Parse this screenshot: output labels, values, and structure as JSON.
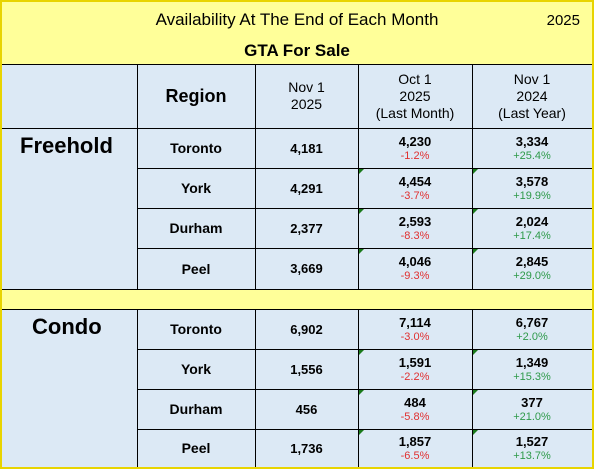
{
  "header": {
    "title": "Availability At The End of Each Month",
    "year": "2025",
    "subtitle": "GTA For Sale"
  },
  "columns": {
    "region": "Region",
    "current": [
      "Nov 1",
      "2025"
    ],
    "last_month": [
      "Oct 1",
      "2025",
      "(Last Month)"
    ],
    "last_year": [
      "Nov 1",
      "2024",
      "(Last Year)"
    ]
  },
  "sections": [
    {
      "name": "Freehold",
      "rows": [
        {
          "region": "Toronto",
          "current": "4,181",
          "last_month": "4,230",
          "last_month_change": "-1.2%",
          "last_year": "3,334",
          "last_year_change": "+25.4%"
        },
        {
          "region": "York",
          "current": "4,291",
          "last_month": "4,454",
          "last_month_change": "-3.7%",
          "last_year": "3,578",
          "last_year_change": "+19.9%"
        },
        {
          "region": "Durham",
          "current": "2,377",
          "last_month": "2,593",
          "last_month_change": "-8.3%",
          "last_year": "2,024",
          "last_year_change": "+17.4%"
        },
        {
          "region": "Peel",
          "current": "3,669",
          "last_month": "4,046",
          "last_month_change": "-9.3%",
          "last_year": "2,845",
          "last_year_change": "+29.0%"
        }
      ]
    },
    {
      "name": "Condo",
      "rows": [
        {
          "region": "Toronto",
          "current": "6,902",
          "last_month": "7,114",
          "last_month_change": "-3.0%",
          "last_year": "6,767",
          "last_year_change": "+2.0%"
        },
        {
          "region": "York",
          "current": "1,556",
          "last_month": "1,591",
          "last_month_change": "-2.2%",
          "last_year": "1,349",
          "last_year_change": "+15.3%"
        },
        {
          "region": "Durham",
          "current": "456",
          "last_month": "484",
          "last_month_change": "-5.8%",
          "last_year": "377",
          "last_year_change": "+21.0%"
        },
        {
          "region": "Peel",
          "current": "1,736",
          "last_month": "1,857",
          "last_month_change": "-6.5%",
          "last_year": "1,527",
          "last_year_change": "+13.7%"
        }
      ]
    }
  ]
}
